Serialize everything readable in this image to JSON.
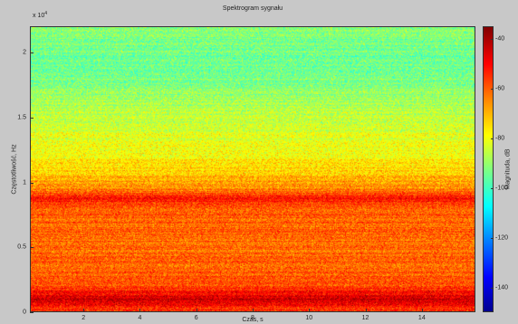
{
  "chart_data": {
    "type": "heatmap",
    "title": "Spektrogram sygnału",
    "xlabel": "Czas, s",
    "ylabel": "Częstotliwość, Hz",
    "y_exponent_base": "x 10",
    "y_exponent_power": "4",
    "xlim": [
      0.1,
      15.9
    ],
    "ylim": [
      0,
      22050
    ],
    "x_ticks": [
      "2",
      "4",
      "6",
      "8",
      "10",
      "12",
      "14"
    ],
    "x_tick_values": [
      2,
      4,
      6,
      8,
      10,
      12,
      14
    ],
    "y_ticks": [
      "0",
      "0.5",
      "1",
      "1.5",
      "2"
    ],
    "y_tick_values": [
      0,
      5000,
      10000,
      15000,
      20000
    ],
    "colorbar": {
      "label": "Magnituda, dB",
      "range": [
        -150,
        -35
      ],
      "ticks": [
        "-40",
        "-60",
        "-80",
        "-100",
        "-120",
        "-140"
      ],
      "tick_values": [
        -40,
        -60,
        -80,
        -100,
        -120,
        -140
      ],
      "colormap": "jet"
    },
    "magnitude_profile_db": [
      {
        "freq_hz": 0,
        "db": -55
      },
      {
        "freq_hz": 900,
        "db": -44
      },
      {
        "freq_hz": 2000,
        "db": -58
      },
      {
        "freq_hz": 5000,
        "db": -62
      },
      {
        "freq_hz": 8000,
        "db": -60
      },
      {
        "freq_hz": 8700,
        "db": -50
      },
      {
        "freq_hz": 9500,
        "db": -65
      },
      {
        "freq_hz": 12000,
        "db": -78
      },
      {
        "freq_hz": 15000,
        "db": -85
      },
      {
        "freq_hz": 19000,
        "db": -95
      },
      {
        "freq_hz": 22050,
        "db": -92
      }
    ]
  }
}
